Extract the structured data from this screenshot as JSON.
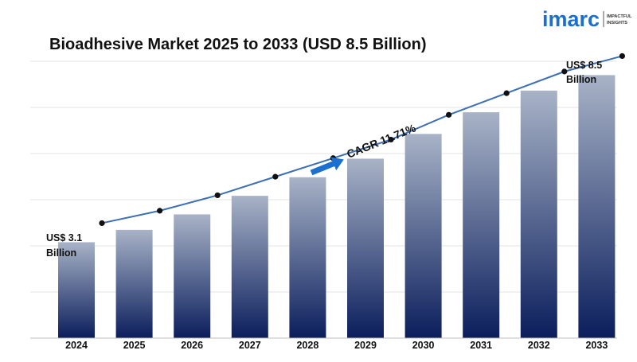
{
  "brand": {
    "logo_text": "imarc",
    "tagline_1": "IMPACTFUL",
    "tagline_2": "INSIGHTS",
    "color": "#1a6fd0"
  },
  "chart_data": {
    "type": "bar",
    "title": "Bioadhesive Market 2025 to 2033 (USD 8.5 Billion)",
    "categories": [
      "2024",
      "2025",
      "2026",
      "2027",
      "2028",
      "2029",
      "2030",
      "2031",
      "2032",
      "2033"
    ],
    "values": [
      3.1,
      3.5,
      4.0,
      4.6,
      5.2,
      5.8,
      6.6,
      7.3,
      8.0,
      8.5
    ],
    "trend_line": true,
    "ylim": [
      0,
      9
    ],
    "grid": true,
    "annotations": {
      "start_label_1": "US$ 3.1",
      "start_label_2": "Billion",
      "end_label_1": "US$ 8.5",
      "end_label_2": "Billion",
      "cagr": "CAGR 11.71%"
    },
    "colors": {
      "bar_top": "#a8b3c7",
      "bar_bottom": "#0b1e5c",
      "line": "#3d6fb6",
      "marker": "#111111",
      "arrow": "#1a6fd0",
      "grid": "#e3e3e3"
    }
  }
}
